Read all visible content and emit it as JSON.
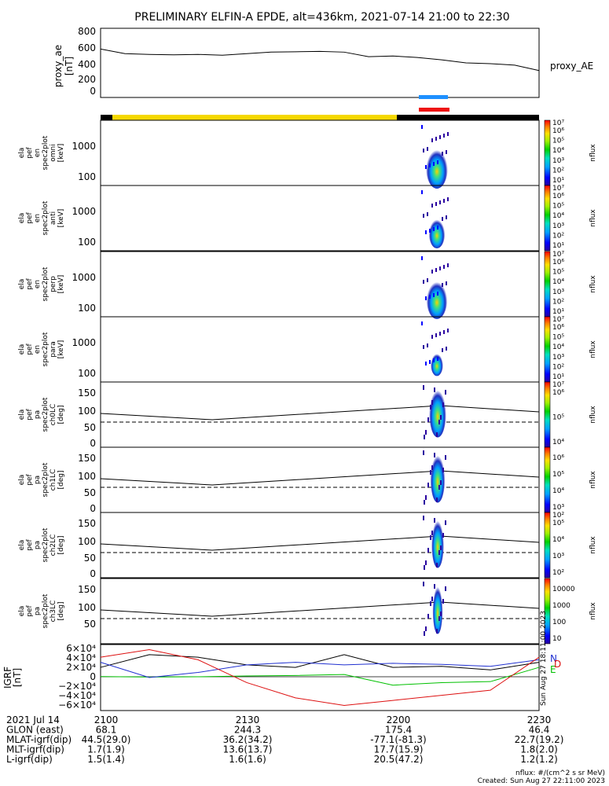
{
  "title": "PRELIMINARY ELFIN-A EPDE, alt=436km, 2021-07-14 21:00 to 22:30",
  "ae_panel": {
    "ylabel": [
      "proxy_ae",
      "[nT]"
    ],
    "yticks": [
      "800",
      "600",
      "400",
      "200",
      "0"
    ],
    "legend": "proxy_AE"
  },
  "spec_panels": [
    {
      "id": "omni",
      "ylabel": [
        "ela",
        "pef",
        "en",
        "spec2plot",
        "omni",
        "[keV]"
      ],
      "yticks": [
        "1000",
        "100"
      ],
      "cb_top": "10⁷",
      "cb_labels": [
        "10⁶",
        "10⁵",
        "10⁴",
        "10³",
        "10²",
        "10¹"
      ],
      "cb_title": "nflux"
    },
    {
      "id": "anti",
      "ylabel": [
        "ela",
        "pef",
        "en",
        "spec2plot",
        "anti",
        "[keV]"
      ],
      "yticks": [
        "1000",
        "100"
      ],
      "cb_top": "10⁷",
      "cb_labels": [
        "10⁶",
        "10⁵",
        "10⁴",
        "10³",
        "10²",
        "10¹"
      ],
      "cb_title": "nflux"
    },
    {
      "id": "perp",
      "ylabel": [
        "ela",
        "pef",
        "en",
        "spec2plot",
        "perp",
        "[keV]"
      ],
      "yticks": [
        "1000",
        "100"
      ],
      "cb_top": "10⁷",
      "cb_labels": [
        "10⁶",
        "10⁵",
        "10⁴",
        "10³",
        "10²",
        "10¹"
      ],
      "cb_title": "nflux"
    },
    {
      "id": "para",
      "ylabel": [
        "ela",
        "pef",
        "en",
        "spec2plot",
        "para",
        "[keV]"
      ],
      "yticks": [
        "1000",
        "100"
      ],
      "cb_top": "10⁷",
      "cb_labels": [
        "10⁶",
        "10⁵",
        "10⁴",
        "10³",
        "10²",
        "10¹"
      ],
      "cb_title": "nflux"
    }
  ],
  "pa_panels": [
    {
      "id": "ch0LC",
      "ylabel": [
        "ela",
        "pef",
        "pa",
        "spec2plot",
        "ch0LC",
        "[deg]"
      ],
      "yticks": [
        "150",
        "100",
        "50",
        "0"
      ],
      "cb_top": "10⁷",
      "cb_labels": [
        "10⁶",
        "10⁵",
        "10⁴"
      ],
      "cb_title": "nflux"
    },
    {
      "id": "ch1LC",
      "ylabel": [
        "ela",
        "pef",
        "pa",
        "spec2plot",
        "ch1LC",
        "[deg]"
      ],
      "yticks": [
        "150",
        "100",
        "50",
        "0"
      ],
      "cb_top": "",
      "cb_labels": [
        "10⁶",
        "10⁵",
        "10⁴",
        "10³"
      ],
      "cb_title": "nflux"
    },
    {
      "id": "ch2LC",
      "ylabel": [
        "ela",
        "pef",
        "pa",
        "spec2plot",
        "ch2LC",
        "[deg]"
      ],
      "yticks": [
        "150",
        "100",
        "50",
        "0"
      ],
      "cb_top": "10²",
      "cb_labels": [
        "10⁵",
        "10⁴",
        "10³",
        "10²"
      ],
      "cb_title": "nflux"
    },
    {
      "id": "ch3LC",
      "ylabel": [
        "ela",
        "pef",
        "pa",
        "spec2plot",
        "ch3LC",
        "[deg]"
      ],
      "yticks": [
        "150",
        "100",
        "50"
      ],
      "cb_top": "",
      "cb_labels": [
        "10000",
        "1000",
        "100",
        "10"
      ],
      "cb_title": "nflux"
    }
  ],
  "igrf_panel": {
    "ylabel": [
      "IGRF",
      "[nT]"
    ],
    "yticks": [
      "6×10⁴",
      "4×10⁴",
      "2×10⁴",
      "0",
      "−2×10⁴",
      "−4×10⁴",
      "−6×10⁴"
    ],
    "legend": [
      "N",
      "E",
      "D"
    ],
    "created_vertical": "Sun Aug 27 18:11:00 2023"
  },
  "colors": {
    "yellow_bar": "#f5d800",
    "black_bar": "#000000",
    "blue_bar": "#1e90ff",
    "red_bar": "#ee1111",
    "north": "#000000",
    "east": "#00c000",
    "down": "#2030d0",
    "red_curve": "#dd1010"
  },
  "footer": {
    "rows": [
      {
        "label": "2021 Jul 14",
        "values": [
          "2100",
          "2130",
          "2200",
          "2230"
        ]
      },
      {
        "label": "GLON (east)",
        "values": [
          "68.1",
          "244.3",
          "175.4",
          "46.4"
        ]
      },
      {
        "label": "MLAT-igrf(dip)",
        "values": [
          "44.5(29.0)",
          "36.2(34.2)",
          "-77.1(-81.3)",
          "22.7(19.2)"
        ]
      },
      {
        "label": "MLT-igrf(dip)",
        "values": [
          "1.7(1.9)",
          "13.6(13.7)",
          "17.7(15.9)",
          "1.8(2.0)"
        ]
      },
      {
        "label": "L-igrf(dip)",
        "values": [
          "1.5(1.4)",
          "1.6(1.6)",
          "20.5(47.2)",
          "1.2(1.2)"
        ]
      }
    ],
    "units": "nflux: #/(cm^2 s sr MeV)",
    "created": "Created: Sun Aug 27 22:11:00 2023"
  },
  "chart_data": [
    {
      "type": "line",
      "title": "PRELIMINARY ELFIN-A EPDE, alt=436km, 2021-07-14 21:00 to 22:30",
      "ylabel": "proxy_ae [nT]",
      "ylim": [
        -50,
        850
      ],
      "xlim_min": [
        0,
        90
      ],
      "x": [
        0,
        5,
        10,
        15,
        20,
        25,
        30,
        35,
        40,
        45,
        50,
        55,
        60,
        65,
        70,
        75,
        80,
        85,
        90
      ],
      "series": [
        {
          "name": "proxy_AE",
          "values": [
            580,
            520,
            510,
            505,
            510,
            500,
            520,
            540,
            545,
            550,
            540,
            480,
            490,
            470,
            440,
            400,
            390,
            370,
            300
          ]
        }
      ]
    },
    {
      "type": "line",
      "ylabel": "IGRF [nT]",
      "ylim": [
        -65000.0,
        65000.0
      ],
      "x": [
        0,
        10,
        20,
        30,
        40,
        50,
        60,
        70,
        80,
        90
      ],
      "series": [
        {
          "name": "N",
          "values": [
            20000,
            45000,
            40000,
            25000,
            20000,
            45000,
            20000,
            22000,
            15000,
            30000
          ]
        },
        {
          "name": "E",
          "values": [
            2000,
            1000,
            1500,
            3000,
            4000,
            6000,
            -15000,
            -10000,
            -8000,
            20000
          ]
        },
        {
          "name": "D",
          "values": [
            30000,
            0,
            10000,
            25000,
            30000,
            25000,
            28000,
            26000,
            22000,
            35000
          ]
        },
        {
          "name": "red",
          "values": [
            40000,
            55000,
            35000,
            -10000,
            -40000,
            -55000,
            -45000,
            -35000,
            -25000,
            40000
          ]
        }
      ]
    }
  ]
}
